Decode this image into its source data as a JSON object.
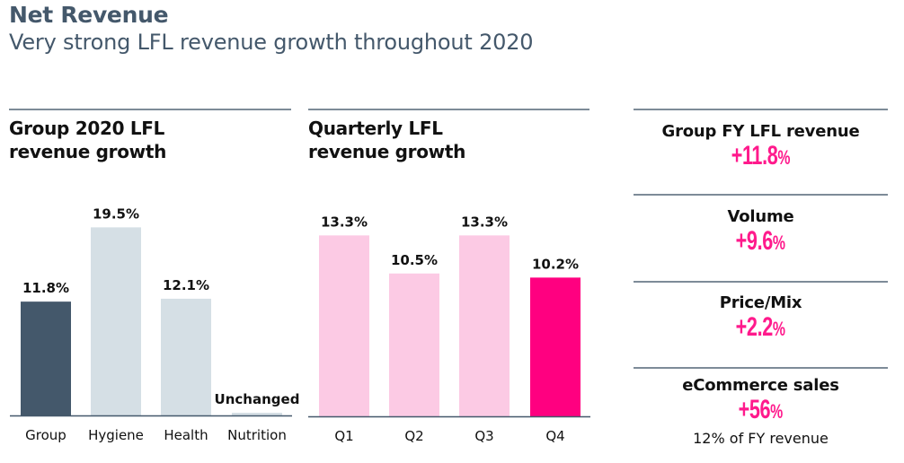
{
  "header": {
    "title": "Net Revenue",
    "subtitle": "Very strong LFL revenue growth throughout 2020"
  },
  "colors": {
    "group_bar": "#44586b",
    "division_bar": "#d5dfe5",
    "quarter_bar": "#fccae4",
    "highlight_bar": "#ff0080",
    "kpi_value": "#ff1a8c",
    "rule": "#7d8b98"
  },
  "chart_data": [
    {
      "type": "bar",
      "title": "Group 2020 LFL revenue growth",
      "title_lines": [
        "Group 2020 LFL",
        "revenue growth"
      ],
      "categories": [
        "Group",
        "Hygiene",
        "Health",
        "Nutrition"
      ],
      "values": [
        11.8,
        19.5,
        12.1,
        0
      ],
      "data_labels": [
        "11.8%",
        "19.5%",
        "12.1%",
        "Unchanged"
      ],
      "xlabel": "",
      "ylabel": "",
      "ylim": [
        0,
        20
      ],
      "grid": false
    },
    {
      "type": "bar",
      "title": "Quarterly LFL revenue growth",
      "title_lines": [
        "Quarterly LFL",
        "revenue growth"
      ],
      "categories": [
        "Q1",
        "Q2",
        "Q3",
        "Q4"
      ],
      "values": [
        13.3,
        10.5,
        13.3,
        10.2
      ],
      "data_labels": [
        "13.3%",
        "10.5%",
        "13.3%",
        "10.2%"
      ],
      "xlabel": "",
      "ylabel": "",
      "ylim": [
        0,
        15.5
      ],
      "grid": false
    }
  ],
  "kpis": [
    {
      "label": "Group FY LFL revenue",
      "value": "+11.8",
      "unit": "%"
    },
    {
      "label": "Volume",
      "value": "+9.6",
      "unit": "%"
    },
    {
      "label": "Price/Mix",
      "value": "+2.2",
      "unit": "%"
    },
    {
      "label": "eCommerce sales",
      "value": "+56",
      "unit": "%",
      "note": "12% of FY revenue"
    }
  ]
}
